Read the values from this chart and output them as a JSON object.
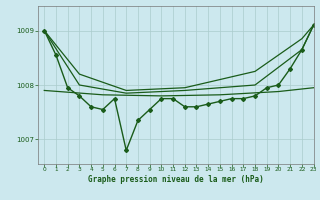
{
  "background_color": "#cce8ee",
  "grid_color": "#aacccc",
  "line_color": "#1a5c1a",
  "title": "Graphe pression niveau de la mer (hPa)",
  "xlim": [
    -0.5,
    23
  ],
  "ylim": [
    1006.55,
    1009.45
  ],
  "yticks": [
    1007,
    1008,
    1009
  ],
  "xticks": [
    0,
    1,
    2,
    3,
    4,
    5,
    6,
    7,
    8,
    9,
    10,
    11,
    12,
    13,
    14,
    15,
    16,
    17,
    18,
    19,
    20,
    21,
    22,
    23
  ],
  "series": [
    {
      "x": [
        0,
        1,
        2,
        3,
        4,
        5,
        6,
        7,
        8,
        9,
        10,
        11,
        12,
        13,
        14,
        15,
        16,
        17,
        18,
        19,
        20,
        21,
        22,
        23
      ],
      "y": [
        1009.0,
        1008.55,
        1007.95,
        1007.8,
        1007.6,
        1007.55,
        1007.75,
        1006.8,
        1007.35,
        1007.55,
        1007.75,
        1007.75,
        1007.6,
        1007.6,
        1007.65,
        1007.7,
        1007.75,
        1007.75,
        1007.8,
        1007.95,
        1008.0,
        1008.3,
        1008.65,
        1009.1
      ],
      "marker": "D",
      "markersize": 2.0,
      "linewidth": 1.0
    },
    {
      "x": [
        0,
        3,
        7,
        12,
        18,
        22,
        23
      ],
      "y": [
        1009.0,
        1008.2,
        1007.9,
        1007.95,
        1008.25,
        1008.85,
        1009.1
      ],
      "marker": null,
      "linewidth": 0.9
    },
    {
      "x": [
        0,
        3,
        7,
        12,
        18,
        22,
        23
      ],
      "y": [
        1009.0,
        1008.0,
        1007.85,
        1007.9,
        1008.0,
        1008.65,
        1009.1
      ],
      "marker": null,
      "linewidth": 0.9
    },
    {
      "x": [
        0,
        5,
        10,
        15,
        20,
        23
      ],
      "y": [
        1007.9,
        1007.82,
        1007.8,
        1007.82,
        1007.88,
        1007.95
      ],
      "marker": null,
      "linewidth": 0.9
    }
  ]
}
